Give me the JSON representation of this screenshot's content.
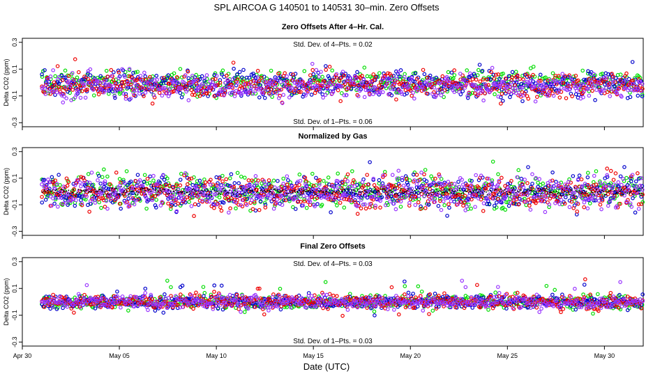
{
  "title": "SPL   AIRCOA G   140501 to 140531   30–min. Zero Offsets",
  "xlabel": "Date (UTC)",
  "colors": {
    "green": "#00dd00",
    "blue": "#0000cc",
    "red": "#ee0000",
    "purple": "#9933ff",
    "black": "#000000"
  },
  "chart_data": [
    {
      "type": "scatter",
      "title": "Zero Offsets After 4–Hr. Cal.",
      "ylabel": "Delta CO2 (ppm)",
      "ylim": [
        -0.33,
        0.33
      ],
      "yticks": [
        -0.3,
        -0.1,
        0.1,
        0.3
      ],
      "ytick_labels": [
        "-0.3",
        "-0.1",
        "0.1",
        "0.3"
      ],
      "xlim": [
        0,
        32
      ],
      "annotation_top": "Std. Dev. of 4–Pts. = 0.02",
      "annotation_bottom": "Std. Dev. of 1–Pts. = 0.06",
      "series": [
        {
          "name": "gas-green",
          "color": "#00dd00",
          "spread": 0.045,
          "center": -0.005
        },
        {
          "name": "gas-blue",
          "color": "#0000cc",
          "spread": 0.05,
          "center": -0.01
        },
        {
          "name": "gas-red",
          "color": "#ee0000",
          "spread": 0.045,
          "center": -0.02
        },
        {
          "name": "gas-purple",
          "color": "#9933ff",
          "spread": 0.045,
          "center": -0.03
        }
      ]
    },
    {
      "type": "scatter",
      "title": "Normalized by Gas",
      "ylabel": "Delta CO2 (ppm)",
      "ylim": [
        -0.33,
        0.33
      ],
      "yticks": [
        -0.3,
        -0.1,
        0.1,
        0.3
      ],
      "ytick_labels": [
        "-0.3",
        "-0.1",
        "0.1",
        "0.3"
      ],
      "xlim": [
        0,
        32
      ],
      "series": [
        {
          "name": "gas-green",
          "color": "#00dd00",
          "spread": 0.06,
          "center": 0.0
        },
        {
          "name": "gas-blue",
          "color": "#0000cc",
          "spread": 0.06,
          "center": 0.0
        },
        {
          "name": "gas-red",
          "color": "#ee0000",
          "spread": 0.06,
          "center": -0.01
        },
        {
          "name": "gas-purple",
          "color": "#9933ff",
          "spread": 0.06,
          "center": -0.01
        },
        {
          "name": "mean-black",
          "color": "#000000",
          "spread": 0.015,
          "center": 0.0
        }
      ]
    },
    {
      "type": "scatter",
      "title": "Final Zero Offsets",
      "ylabel": "Delta CO2 (ppm)",
      "ylim": [
        -0.33,
        0.33
      ],
      "yticks": [
        -0.3,
        -0.1,
        0.1,
        0.3
      ],
      "ytick_labels": [
        "-0.3",
        "-0.1",
        "0.1",
        "0.3"
      ],
      "xlim": [
        0,
        32
      ],
      "annotation_top": "Std. Dev. of 4–Pts. = 0.03",
      "annotation_bottom": "Std. Dev. of 1–Pts. = 0.03",
      "series": [
        {
          "name": "gas-green",
          "color": "#00dd00",
          "spread": 0.025,
          "center": 0.0
        },
        {
          "name": "gas-blue",
          "color": "#0000cc",
          "spread": 0.025,
          "center": 0.0
        },
        {
          "name": "gas-red",
          "color": "#ee0000",
          "spread": 0.025,
          "center": 0.0
        },
        {
          "name": "gas-purple",
          "color": "#9933ff",
          "spread": 0.025,
          "center": 0.0
        }
      ]
    }
  ],
  "x_axis": {
    "ticks": [
      0,
      5,
      10,
      15,
      20,
      25,
      30
    ],
    "labels": [
      "Apr 30",
      "May 05",
      "May 10",
      "May 15",
      "May 20",
      "May 25",
      "May 30"
    ],
    "data_start": 1.0,
    "data_end": 32.0
  }
}
